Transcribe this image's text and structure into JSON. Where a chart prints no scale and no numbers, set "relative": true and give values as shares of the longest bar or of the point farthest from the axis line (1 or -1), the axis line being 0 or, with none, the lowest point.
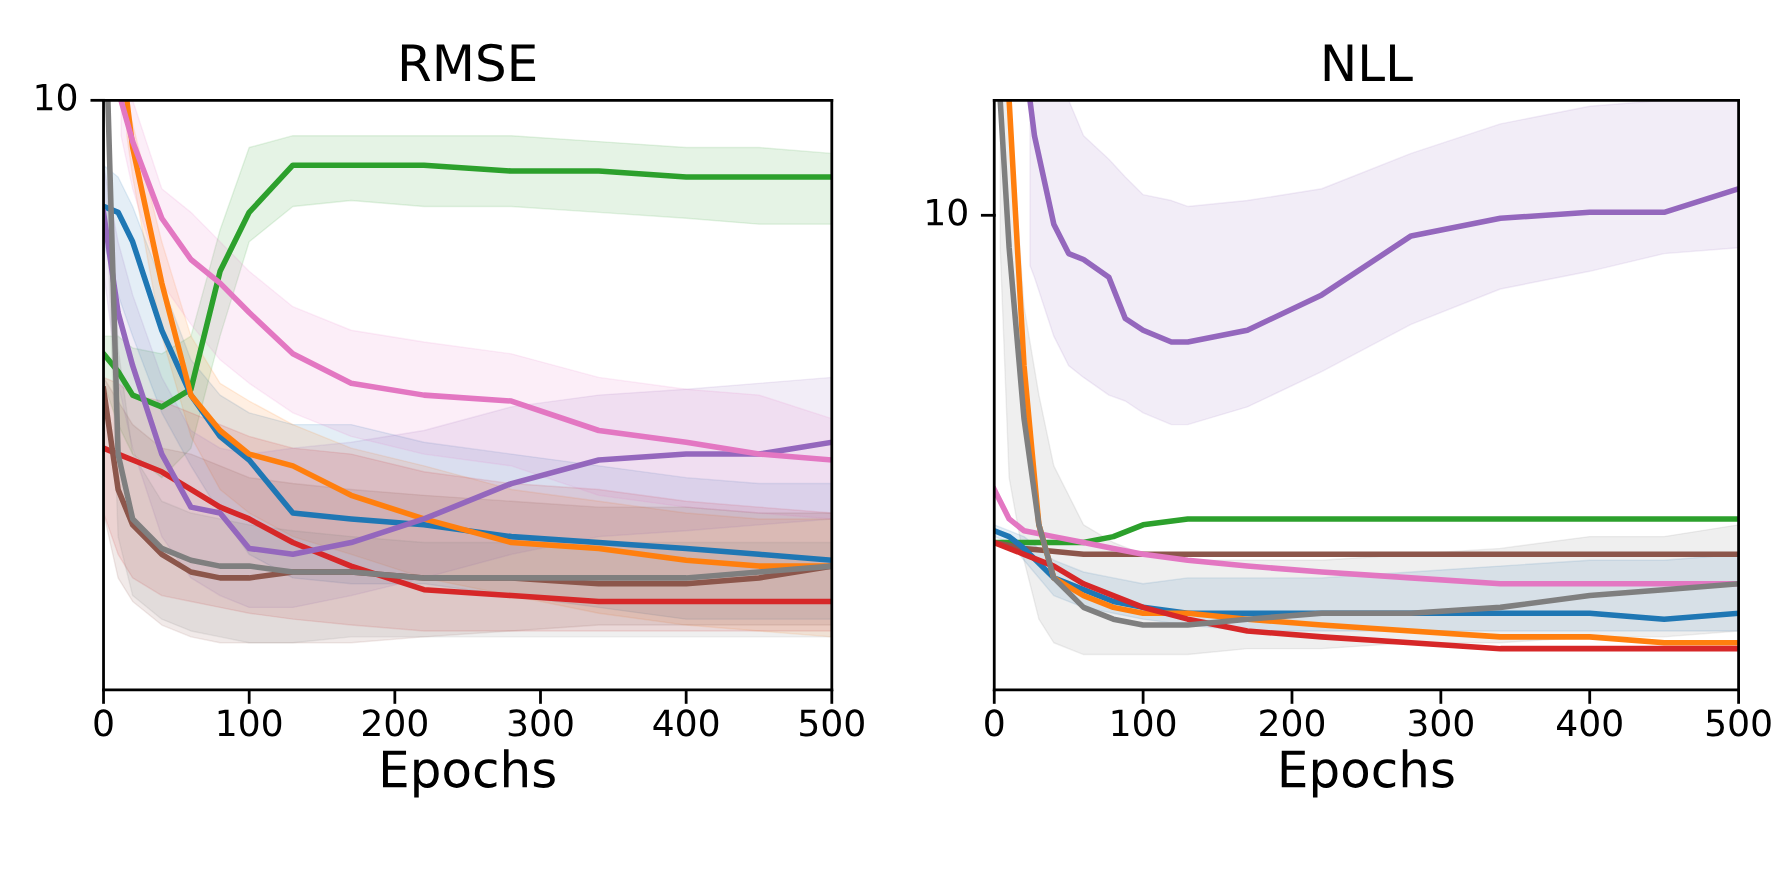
{
  "chart_data": [
    {
      "type": "line",
      "title": "RMSE",
      "xlabel": "Epochs",
      "xlim": [
        0,
        500
      ],
      "xticks": [
        0,
        100,
        200,
        300,
        400,
        500
      ],
      "relative": true,
      "annotations": [
        "10"
      ],
      "series": [
        {
          "color": "#2ca02c",
          "x": [
            0,
            10,
            20,
            40,
            60,
            80,
            100,
            130,
            170,
            220,
            280,
            340,
            400,
            450,
            500
          ],
          "values": [
            0.57,
            0.54,
            0.5,
            0.48,
            0.51,
            0.71,
            0.81,
            0.89,
            0.89,
            0.89,
            0.88,
            0.88,
            0.87,
            0.87,
            0.87
          ],
          "upper": [
            0.6,
            0.6,
            0.58,
            0.57,
            0.6,
            0.78,
            0.92,
            0.94,
            0.94,
            0.94,
            0.94,
            0.93,
            0.92,
            0.92,
            0.91
          ],
          "lower": [
            0.52,
            0.45,
            0.4,
            0.36,
            0.41,
            0.6,
            0.76,
            0.82,
            0.83,
            0.82,
            0.82,
            0.81,
            0.8,
            0.79,
            0.79
          ]
        },
        {
          "color": "#1f77b4",
          "x": [
            0,
            10,
            20,
            40,
            60,
            80,
            100,
            130,
            170,
            220,
            280,
            340,
            400,
            450,
            500
          ],
          "values": [
            0.82,
            0.81,
            0.76,
            0.61,
            0.5,
            0.43,
            0.39,
            0.3,
            0.29,
            0.28,
            0.26,
            0.25,
            0.24,
            0.23,
            0.22
          ],
          "upper": [
            0.89,
            0.87,
            0.82,
            0.69,
            0.56,
            0.5,
            0.47,
            0.45,
            0.45,
            0.42,
            0.4,
            0.38,
            0.36,
            0.35,
            0.35
          ],
          "lower": [
            0.76,
            0.67,
            0.6,
            0.47,
            0.38,
            0.3,
            0.23,
            0.19,
            0.18,
            0.18,
            0.16,
            0.14,
            0.12,
            0.12,
            0.12
          ]
        },
        {
          "color": "#ff7f0e",
          "x": [
            16,
            20,
            40,
            60,
            80,
            100,
            130,
            170,
            220,
            280,
            340,
            400,
            450,
            500
          ],
          "values": [
            1.0,
            0.92,
            0.69,
            0.5,
            0.44,
            0.4,
            0.38,
            0.33,
            0.29,
            0.25,
            0.24,
            0.22,
            0.21,
            0.21
          ],
          "upper": [
            1.0,
            0.96,
            0.76,
            0.6,
            0.52,
            0.49,
            0.45,
            0.41,
            0.38,
            0.34,
            0.32,
            0.3,
            0.29,
            0.29
          ],
          "lower": [
            0.94,
            0.87,
            0.6,
            0.43,
            0.34,
            0.3,
            0.26,
            0.23,
            0.19,
            0.16,
            0.13,
            0.11,
            0.1,
            0.09
          ]
        },
        {
          "color": "#d62728",
          "x": [
            0,
            10,
            20,
            40,
            60,
            80,
            100,
            130,
            170,
            220,
            280,
            340,
            400,
            450,
            500
          ],
          "values": [
            0.41,
            0.4,
            0.39,
            0.37,
            0.34,
            0.31,
            0.29,
            0.25,
            0.21,
            0.17,
            0.16,
            0.15,
            0.15,
            0.15,
            0.15
          ],
          "upper": [
            0.53,
            0.52,
            0.5,
            0.49,
            0.47,
            0.45,
            0.43,
            0.41,
            0.4,
            0.37,
            0.35,
            0.34,
            0.32,
            0.31,
            0.3
          ],
          "lower": [
            0.3,
            0.23,
            0.19,
            0.16,
            0.15,
            0.14,
            0.13,
            0.12,
            0.11,
            0.1,
            0.1,
            0.1,
            0.1,
            0.1,
            0.1
          ]
        },
        {
          "color": "#9467bd",
          "x": [
            0,
            10,
            20,
            40,
            60,
            80,
            100,
            130,
            170,
            220,
            280,
            340,
            400,
            450,
            500
          ],
          "values": [
            0.81,
            0.64,
            0.55,
            0.4,
            0.31,
            0.3,
            0.24,
            0.23,
            0.25,
            0.29,
            0.35,
            0.39,
            0.4,
            0.4,
            0.42
          ],
          "upper": [
            0.89,
            0.76,
            0.67,
            0.53,
            0.44,
            0.41,
            0.4,
            0.41,
            0.42,
            0.44,
            0.48,
            0.5,
            0.51,
            0.52,
            0.53
          ],
          "lower": [
            0.71,
            0.52,
            0.41,
            0.26,
            0.19,
            0.16,
            0.14,
            0.14,
            0.16,
            0.19,
            0.23,
            0.26,
            0.27,
            0.28,
            0.29
          ]
        },
        {
          "color": "#e377c2",
          "x": [
            12,
            20,
            40,
            60,
            80,
            100,
            130,
            170,
            220,
            280,
            340,
            400,
            450,
            500
          ],
          "values": [
            1.0,
            0.93,
            0.8,
            0.73,
            0.69,
            0.64,
            0.57,
            0.52,
            0.5,
            0.49,
            0.44,
            0.42,
            0.4,
            0.39
          ],
          "upper": [
            1.0,
            1.0,
            0.85,
            0.81,
            0.76,
            0.71,
            0.65,
            0.61,
            0.59,
            0.57,
            0.53,
            0.51,
            0.5,
            0.46
          ],
          "lower": [
            0.94,
            0.85,
            0.69,
            0.62,
            0.56,
            0.52,
            0.47,
            0.43,
            0.4,
            0.38,
            0.33,
            0.31,
            0.3,
            0.29
          ]
        },
        {
          "color": "#8c564b",
          "x": [
            0,
            10,
            20,
            40,
            60,
            80,
            100,
            130,
            170,
            220,
            280,
            340,
            400,
            450,
            500
          ],
          "values": [
            0.51,
            0.34,
            0.28,
            0.23,
            0.2,
            0.19,
            0.19,
            0.2,
            0.2,
            0.19,
            0.19,
            0.18,
            0.18,
            0.19,
            0.21
          ],
          "upper": [
            0.53,
            0.49,
            0.45,
            0.41,
            0.4,
            0.38,
            0.36,
            0.35,
            0.34,
            0.33,
            0.32,
            0.31,
            0.31,
            0.3,
            0.3
          ],
          "lower": [
            0.3,
            0.19,
            0.15,
            0.11,
            0.09,
            0.08,
            0.08,
            0.08,
            0.08,
            0.09,
            0.1,
            0.11,
            0.11,
            0.11,
            0.11
          ]
        },
        {
          "color": "#7f7f7f",
          "x": [
            3,
            10,
            20,
            40,
            60,
            80,
            100,
            130,
            170,
            220,
            280,
            340,
            400,
            450,
            500
          ],
          "values": [
            1.0,
            0.4,
            0.29,
            0.24,
            0.22,
            0.21,
            0.21,
            0.2,
            0.2,
            0.19,
            0.19,
            0.19,
            0.19,
            0.2,
            0.21
          ],
          "upper": [
            1.0,
            0.58,
            0.4,
            0.32,
            0.3,
            0.29,
            0.28,
            0.27,
            0.26,
            0.25,
            0.25,
            0.25,
            0.25,
            0.25,
            0.25
          ],
          "lower": [
            0.76,
            0.26,
            0.16,
            0.12,
            0.1,
            0.09,
            0.08,
            0.08,
            0.09,
            0.09,
            0.09,
            0.09,
            0.09,
            0.09,
            0.09
          ]
        }
      ]
    },
    {
      "type": "line",
      "title": "NLL",
      "xlabel": "Epochs",
      "xlim": [
        0,
        500
      ],
      "xticks": [
        0,
        100,
        200,
        300,
        400,
        500
      ],
      "relative": true,
      "annotations": [
        "10"
      ],
      "series": [
        {
          "color": "#9467bd",
          "x": [
            24,
            27,
            40,
            50,
            60,
            77,
            88,
            100,
            119,
            130,
            170,
            220,
            280,
            340,
            400,
            450,
            500
          ],
          "values": [
            1.0,
            0.94,
            0.79,
            0.74,
            0.73,
            0.7,
            0.63,
            0.61,
            0.59,
            0.59,
            0.61,
            0.67,
            0.77,
            0.8,
            0.81,
            0.81,
            0.85
          ],
          "upper": [
            1.0,
            1.0,
            1.0,
            1.0,
            0.94,
            0.9,
            0.87,
            0.84,
            0.83,
            0.82,
            0.83,
            0.85,
            0.91,
            0.96,
            0.99,
            1.0,
            1.0
          ],
          "lower": [
            0.72,
            0.7,
            0.6,
            0.55,
            0.53,
            0.5,
            0.49,
            0.47,
            0.45,
            0.45,
            0.48,
            0.54,
            0.62,
            0.68,
            0.71,
            0.74,
            0.75
          ]
        },
        {
          "color": "#2ca02c",
          "x": [
            0,
            40,
            60,
            80,
            100,
            130,
            170,
            280,
            400,
            500
          ],
          "values": [
            0.25,
            0.25,
            0.25,
            0.26,
            0.28,
            0.29,
            0.29,
            0.29,
            0.29,
            0.29
          ]
        },
        {
          "color": "#8c564b",
          "x": [
            0,
            20,
            60,
            200,
            500
          ],
          "values": [
            0.25,
            0.24,
            0.23,
            0.23,
            0.23
          ]
        },
        {
          "color": "#e377c2",
          "x": [
            0,
            10,
            20,
            40,
            60,
            80,
            100,
            130,
            170,
            220,
            280,
            340,
            400,
            450,
            500
          ],
          "values": [
            0.34,
            0.29,
            0.27,
            0.26,
            0.25,
            0.24,
            0.23,
            0.22,
            0.21,
            0.2,
            0.19,
            0.18,
            0.18,
            0.18,
            0.18
          ]
        },
        {
          "color": "#1f77b4",
          "x": [
            0,
            10,
            20,
            40,
            60,
            80,
            100,
            130,
            170,
            220,
            280,
            340,
            400,
            450,
            500
          ],
          "values": [
            0.27,
            0.26,
            0.24,
            0.19,
            0.17,
            0.15,
            0.14,
            0.13,
            0.13,
            0.13,
            0.13,
            0.13,
            0.13,
            0.12,
            0.13
          ],
          "upper": [
            0.28,
            0.27,
            0.26,
            0.22,
            0.2,
            0.19,
            0.18,
            0.19,
            0.19,
            0.19,
            0.2,
            0.21,
            0.22,
            0.22,
            0.23
          ],
          "lower": [
            0.26,
            0.25,
            0.22,
            0.16,
            0.14,
            0.13,
            0.12,
            0.11,
            0.1,
            0.1,
            0.1,
            0.1,
            0.1,
            0.1,
            0.1
          ]
        },
        {
          "color": "#ff7f0e",
          "x": [
            10,
            20,
            30,
            40,
            60,
            80,
            100,
            130,
            170,
            220,
            280,
            340,
            400,
            450,
            500
          ],
          "values": [
            1.0,
            0.55,
            0.28,
            0.19,
            0.16,
            0.14,
            0.13,
            0.13,
            0.12,
            0.11,
            0.1,
            0.09,
            0.09,
            0.08,
            0.08
          ]
        },
        {
          "color": "#d62728",
          "x": [
            0,
            20,
            40,
            60,
            80,
            100,
            130,
            170,
            220,
            280,
            340,
            400,
            450,
            500
          ],
          "values": [
            0.25,
            0.23,
            0.21,
            0.18,
            0.16,
            0.14,
            0.12,
            0.1,
            0.09,
            0.08,
            0.07,
            0.07,
            0.07,
            0.07
          ]
        },
        {
          "color": "#7f7f7f",
          "x": [
            4,
            10,
            20,
            30,
            40,
            60,
            80,
            100,
            130,
            170,
            220,
            280,
            340,
            400,
            450,
            500
          ],
          "values": [
            1.0,
            0.75,
            0.46,
            0.28,
            0.19,
            0.14,
            0.12,
            0.11,
            0.11,
            0.12,
            0.13,
            0.13,
            0.14,
            0.16,
            0.17,
            0.18
          ],
          "upper": [
            1.0,
            1.0,
            0.65,
            0.5,
            0.38,
            0.28,
            0.25,
            0.23,
            0.22,
            0.22,
            0.22,
            0.23,
            0.24,
            0.26,
            0.26,
            0.28
          ],
          "lower": [
            0.75,
            0.36,
            0.22,
            0.12,
            0.08,
            0.06,
            0.06,
            0.06,
            0.06,
            0.07,
            0.07,
            0.08,
            0.08,
            0.09,
            0.09,
            0.1
          ]
        }
      ]
    }
  ]
}
